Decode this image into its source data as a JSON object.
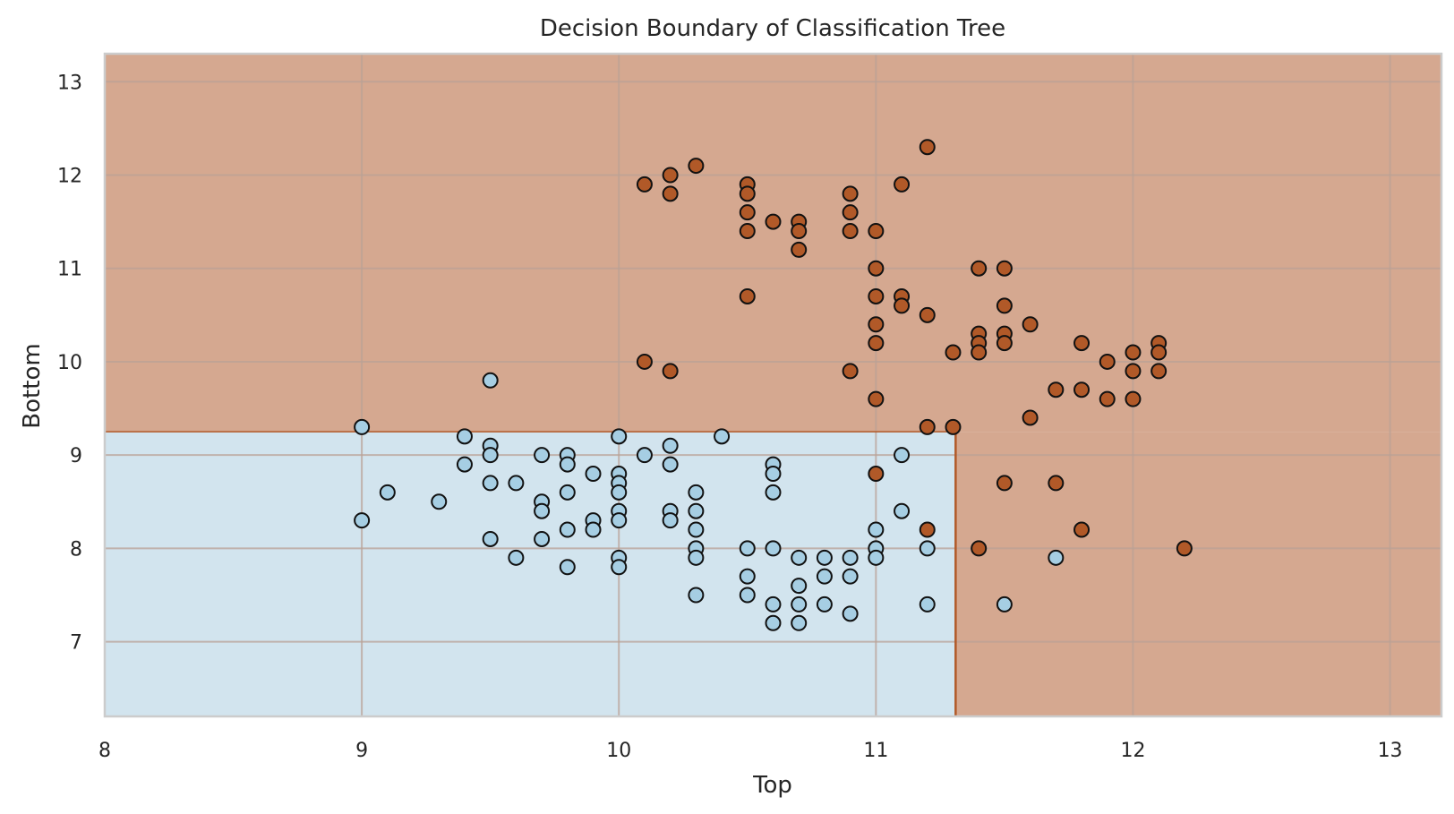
{
  "chart_data": {
    "type": "scatter",
    "title": "Decision Boundary of Classification Tree",
    "xlabel": "Top",
    "ylabel": "Bottom",
    "xlim": [
      8.0,
      13.2
    ],
    "ylim": [
      6.2,
      13.3
    ],
    "xticks": [
      8,
      9,
      10,
      11,
      12,
      13
    ],
    "yticks": [
      7,
      8,
      9,
      10,
      11,
      12,
      13
    ],
    "grid": true,
    "colors": {
      "class0_region": "#d2e4ee",
      "class1_region": "#d5a890",
      "class0_point": "#a6cee3",
      "class1_point": "#b15928",
      "boundary": "#b15928",
      "grid": "#b9a296"
    },
    "decision_regions": [
      {
        "class": 0,
        "x_range": [
          8.0,
          11.31
        ],
        "y_range": [
          6.2,
          9.25
        ]
      },
      {
        "class": 1,
        "x_range": [
          8.0,
          13.2
        ],
        "y_range": [
          9.25,
          13.3
        ]
      },
      {
        "class": 1,
        "x_range": [
          11.31,
          13.2
        ],
        "y_range": [
          6.2,
          9.25
        ]
      }
    ],
    "series": [
      {
        "class": 0,
        "points": [
          [
            9.0,
            9.3
          ],
          [
            9.0,
            8.3
          ],
          [
            9.1,
            8.6
          ],
          [
            9.3,
            8.5
          ],
          [
            9.4,
            9.2
          ],
          [
            9.4,
            8.9
          ],
          [
            9.5,
            9.8
          ],
          [
            9.5,
            9.1
          ],
          [
            9.5,
            9.0
          ],
          [
            9.5,
            8.7
          ],
          [
            9.5,
            8.1
          ],
          [
            9.6,
            8.7
          ],
          [
            9.6,
            7.9
          ],
          [
            9.7,
            9.0
          ],
          [
            9.7,
            8.5
          ],
          [
            9.7,
            8.4
          ],
          [
            9.7,
            8.1
          ],
          [
            9.8,
            9.0
          ],
          [
            9.8,
            8.9
          ],
          [
            9.8,
            8.6
          ],
          [
            9.8,
            8.2
          ],
          [
            9.8,
            7.8
          ],
          [
            9.9,
            8.8
          ],
          [
            9.9,
            8.3
          ],
          [
            9.9,
            8.2
          ],
          [
            10.0,
            9.2
          ],
          [
            10.0,
            8.8
          ],
          [
            10.0,
            8.7
          ],
          [
            10.0,
            8.6
          ],
          [
            10.0,
            8.4
          ],
          [
            10.0,
            8.3
          ],
          [
            10.0,
            7.9
          ],
          [
            10.0,
            7.8
          ],
          [
            10.1,
            9.0
          ],
          [
            10.2,
            9.1
          ],
          [
            10.2,
            8.9
          ],
          [
            10.2,
            8.4
          ],
          [
            10.2,
            8.3
          ],
          [
            10.3,
            8.6
          ],
          [
            10.3,
            8.4
          ],
          [
            10.3,
            8.2
          ],
          [
            10.3,
            8.0
          ],
          [
            10.3,
            7.9
          ],
          [
            10.3,
            7.5
          ],
          [
            10.4,
            9.2
          ],
          [
            10.5,
            8.0
          ],
          [
            10.5,
            7.7
          ],
          [
            10.5,
            7.5
          ],
          [
            10.6,
            8.9
          ],
          [
            10.6,
            8.8
          ],
          [
            10.6,
            8.6
          ],
          [
            10.6,
            8.0
          ],
          [
            10.6,
            7.4
          ],
          [
            10.6,
            7.2
          ],
          [
            10.7,
            7.9
          ],
          [
            10.7,
            7.6
          ],
          [
            10.7,
            7.4
          ],
          [
            10.7,
            7.2
          ],
          [
            10.8,
            7.9
          ],
          [
            10.8,
            7.7
          ],
          [
            10.8,
            7.4
          ],
          [
            10.9,
            7.9
          ],
          [
            10.9,
            7.7
          ],
          [
            10.9,
            7.3
          ],
          [
            11.0,
            8.2
          ],
          [
            11.0,
            8.0
          ],
          [
            11.0,
            7.9
          ],
          [
            11.1,
            9.0
          ],
          [
            11.1,
            8.4
          ],
          [
            11.2,
            8.0
          ],
          [
            11.2,
            7.4
          ],
          [
            11.5,
            7.4
          ],
          [
            11.7,
            7.9
          ]
        ]
      },
      {
        "class": 1,
        "points": [
          [
            10.1,
            11.9
          ],
          [
            10.2,
            12.0
          ],
          [
            10.2,
            11.8
          ],
          [
            10.3,
            12.1
          ],
          [
            10.5,
            11.9
          ],
          [
            10.5,
            11.8
          ],
          [
            10.5,
            11.6
          ],
          [
            10.5,
            11.4
          ],
          [
            10.5,
            10.7
          ],
          [
            10.6,
            11.5
          ],
          [
            10.7,
            11.5
          ],
          [
            10.7,
            11.4
          ],
          [
            10.7,
            11.2
          ],
          [
            10.9,
            11.8
          ],
          [
            10.9,
            11.6
          ],
          [
            10.9,
            11.4
          ],
          [
            10.9,
            9.9
          ],
          [
            11.0,
            11.4
          ],
          [
            11.0,
            11.0
          ],
          [
            11.0,
            10.7
          ],
          [
            11.0,
            10.4
          ],
          [
            11.0,
            10.2
          ],
          [
            11.0,
            9.6
          ],
          [
            11.0,
            8.8
          ],
          [
            11.1,
            11.9
          ],
          [
            11.1,
            10.7
          ],
          [
            11.1,
            10.6
          ],
          [
            11.2,
            12.3
          ],
          [
            11.2,
            10.5
          ],
          [
            11.2,
            9.3
          ],
          [
            11.2,
            8.2
          ],
          [
            11.3,
            10.1
          ],
          [
            11.3,
            9.3
          ],
          [
            11.4,
            11.0
          ],
          [
            11.4,
            10.3
          ],
          [
            11.4,
            10.2
          ],
          [
            11.4,
            10.1
          ],
          [
            11.4,
            8.0
          ],
          [
            11.5,
            11.0
          ],
          [
            11.5,
            10.6
          ],
          [
            11.5,
            10.3
          ],
          [
            11.5,
            10.2
          ],
          [
            11.5,
            8.7
          ],
          [
            11.6,
            10.4
          ],
          [
            11.6,
            9.4
          ],
          [
            11.7,
            9.7
          ],
          [
            11.7,
            8.7
          ],
          [
            11.8,
            10.2
          ],
          [
            11.8,
            9.7
          ],
          [
            11.8,
            8.2
          ],
          [
            11.9,
            10.0
          ],
          [
            11.9,
            9.6
          ],
          [
            12.0,
            10.1
          ],
          [
            12.0,
            9.9
          ],
          [
            12.0,
            9.6
          ],
          [
            12.1,
            10.2
          ],
          [
            12.1,
            10.1
          ],
          [
            12.1,
            9.9
          ],
          [
            12.2,
            8.0
          ],
          [
            10.1,
            10.0
          ],
          [
            10.2,
            9.9
          ]
        ]
      }
    ]
  }
}
